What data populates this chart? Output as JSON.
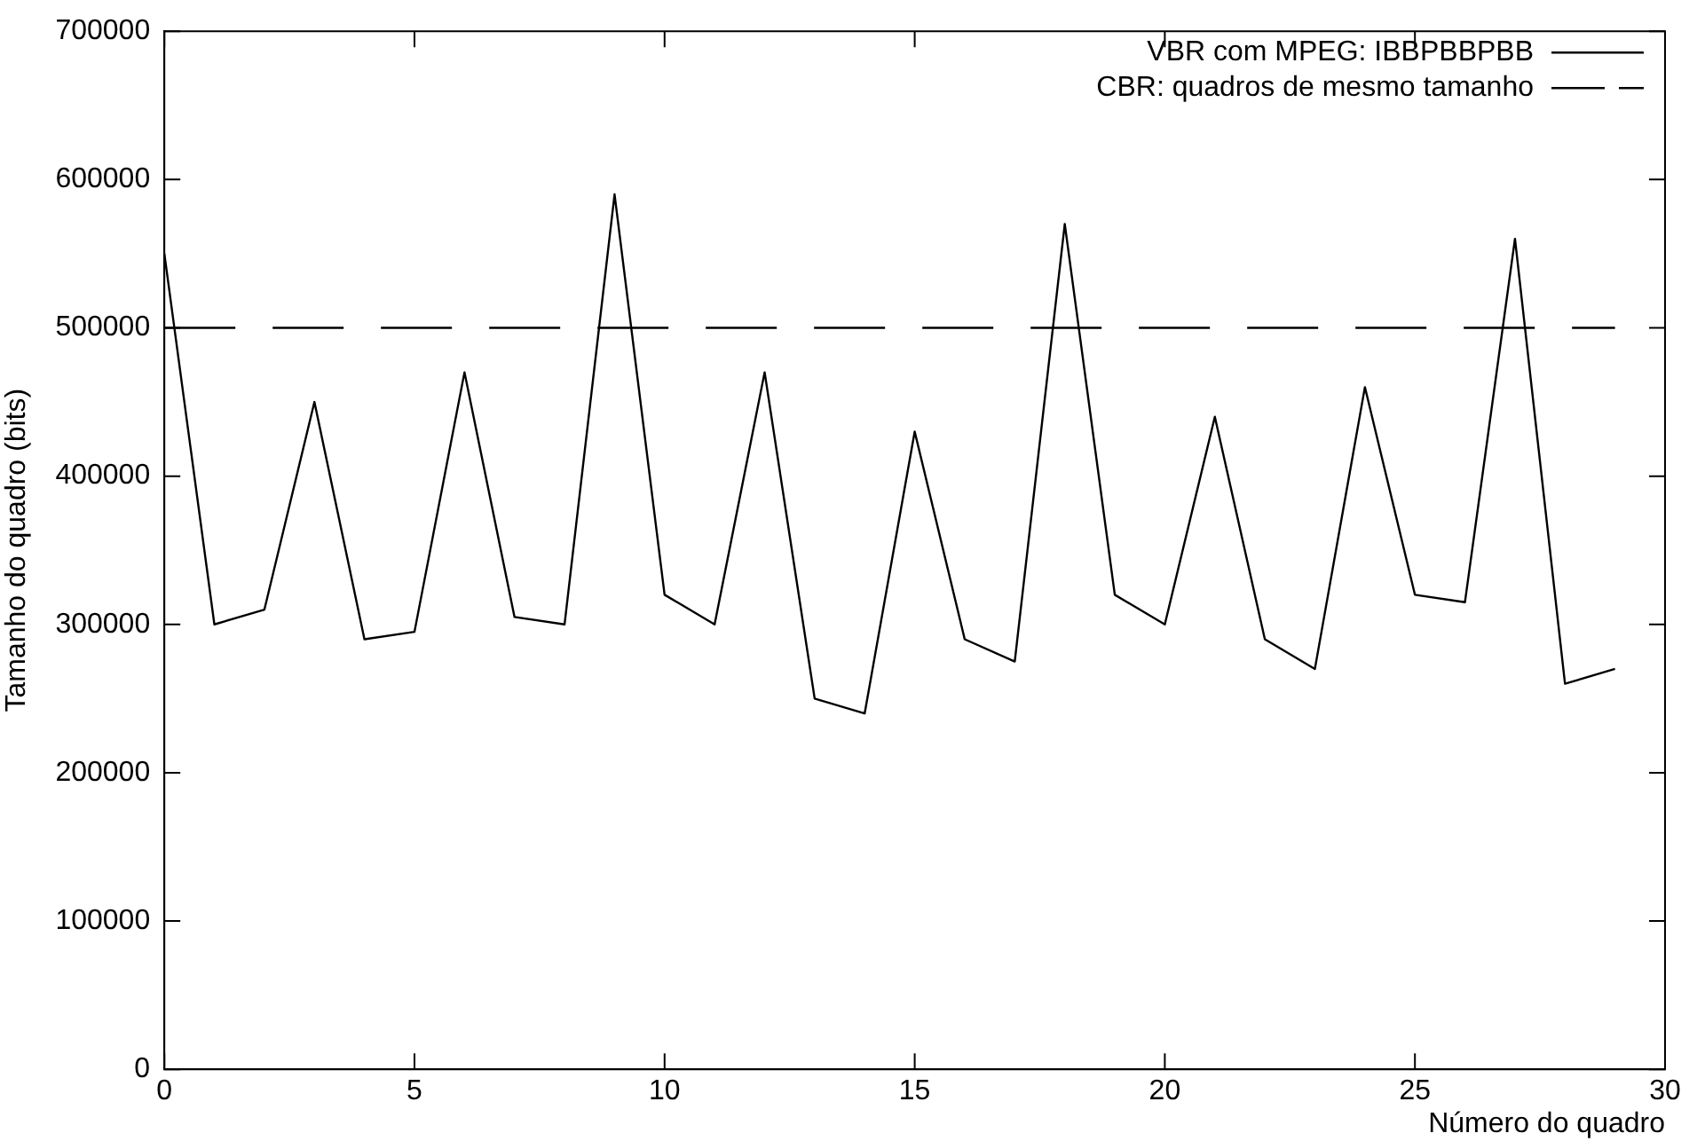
{
  "chart_data": {
    "type": "line",
    "xlabel": "Número do quadro",
    "ylabel": "Tamanho do quadro (bits)",
    "xlim": [
      0,
      30
    ],
    "xticks": [
      0,
      5,
      10,
      15,
      20,
      25,
      30
    ],
    "ylim": [
      0,
      700000
    ],
    "yticks": [
      0,
      100000,
      200000,
      300000,
      400000,
      500000,
      600000,
      700000
    ],
    "grid": false,
    "legend": "top right",
    "marker": "none",
    "series": [
      {
        "name": "VBR com MPEG: IBBPBBPBB",
        "color": "#000000",
        "line_style": "solid",
        "x": [
          0,
          1,
          2,
          3,
          4,
          5,
          6,
          7,
          8,
          9,
          10,
          11,
          12,
          13,
          14,
          15,
          16,
          17,
          18,
          19,
          20,
          21,
          22,
          23,
          24,
          25,
          26,
          27,
          28,
          29
        ],
        "values": [
          550000,
          300000,
          310000,
          450000,
          290000,
          295000,
          470000,
          305000,
          300000,
          590000,
          320000,
          300000,
          470000,
          250000,
          240000,
          430000,
          290000,
          275000,
          570000,
          320000,
          300000,
          440000,
          290000,
          270000,
          460000,
          320000,
          315000,
          560000,
          260000,
          270000
        ]
      },
      {
        "name": "CBR: quadros de mesmo tamanho",
        "color": "#000000",
        "line_style": "dashed",
        "x": [
          0,
          29
        ],
        "values": [
          500000,
          500000
        ]
      }
    ]
  }
}
